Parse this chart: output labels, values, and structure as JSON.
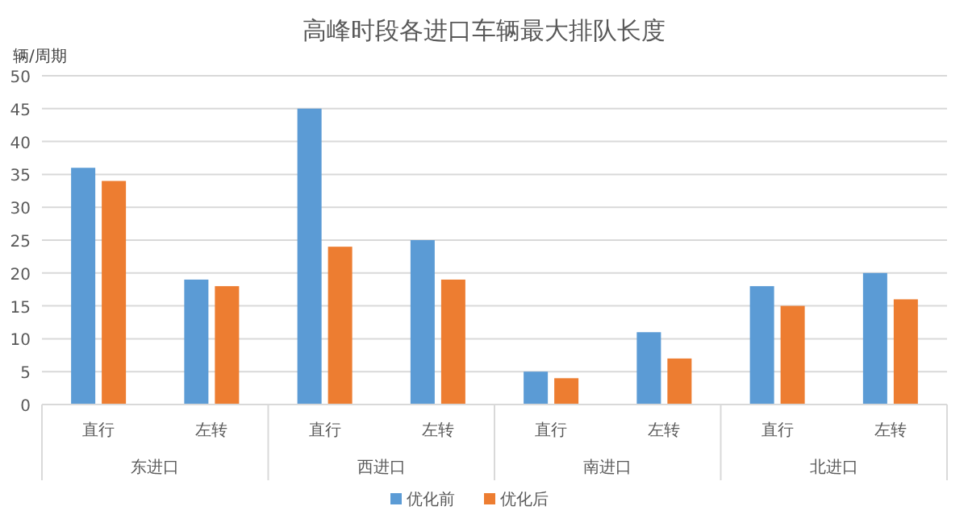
{
  "chart_data": {
    "type": "bar",
    "title": "高峰时段各进口车辆最大排队长度",
    "ylabel": "辆/周期",
    "categories": [
      "直行",
      "左转",
      "直行",
      "左转",
      "直行",
      "左转",
      "直行",
      "左转"
    ],
    "annotations": [
      "东进口",
      "西进口",
      "南进口",
      "北进口"
    ],
    "series": [
      {
        "name": "优化前",
        "color": "#5b9bd5",
        "values": [
          36,
          19,
          45,
          25,
          5,
          11,
          18,
          20
        ]
      },
      {
        "name": "优化后",
        "color": "#ed7d31",
        "values": [
          34,
          18,
          24,
          19,
          4,
          7,
          15,
          16
        ]
      }
    ],
    "ylim": [
      0,
      50
    ],
    "yticks": [
      0,
      5,
      10,
      15,
      20,
      25,
      30,
      35,
      40,
      45,
      50
    ],
    "grid": "y",
    "legend": "bottom"
  }
}
